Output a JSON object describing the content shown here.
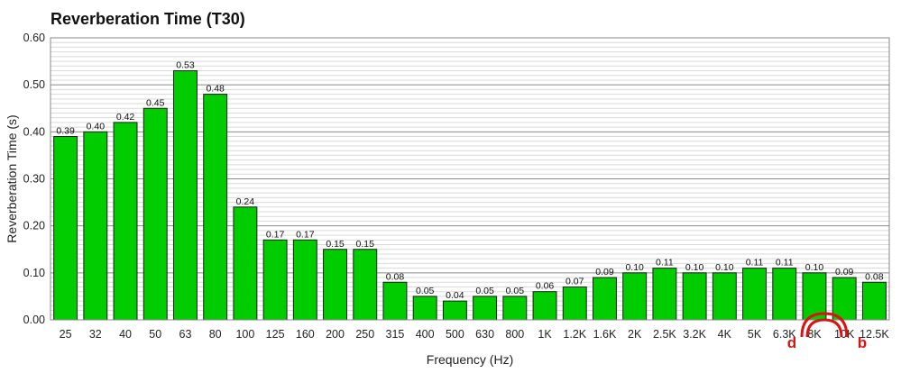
{
  "chart_data": {
    "type": "bar",
    "title": "Reverberation Time (T30)",
    "xlabel": "Frequency (Hz)",
    "ylabel": "Reverberation Time (s)",
    "ylim": [
      0,
      0.6
    ],
    "yticks": [
      "0.00",
      "0.10",
      "0.20",
      "0.30",
      "0.40",
      "0.50",
      "0.60"
    ],
    "categories": [
      "25",
      "32",
      "40",
      "50",
      "63",
      "80",
      "100",
      "125",
      "160",
      "200",
      "250",
      "315",
      "400",
      "500",
      "630",
      "800",
      "1K",
      "1.2K",
      "1.6K",
      "2K",
      "2.5K",
      "3.2K",
      "4K",
      "5K",
      "6.3K",
      "8K",
      "10K",
      "12.5K"
    ],
    "values": [
      0.39,
      0.4,
      0.42,
      0.45,
      0.53,
      0.48,
      0.24,
      0.17,
      0.17,
      0.15,
      0.15,
      0.08,
      0.05,
      0.04,
      0.05,
      0.05,
      0.06,
      0.07,
      0.09,
      0.1,
      0.11,
      0.1,
      0.1,
      0.11,
      0.11,
      0.1,
      0.09,
      0.08
    ],
    "value_labels": [
      "0.39",
      "0.40",
      "0.42",
      "0.45",
      "0.53",
      "0.48",
      "0.24",
      "0.17",
      "0.17",
      "0.15",
      "0.15",
      "0.08",
      "0.05",
      "0.04",
      "0.05",
      "0.05",
      "0.06",
      "0.07",
      "0.09",
      "0.10",
      "0.11",
      "0.10",
      "0.10",
      "0.11",
      "0.11",
      "0.10",
      "0.09",
      "0.08"
    ],
    "bar_color": "#00cc00",
    "grid": true,
    "legend": false
  },
  "annotation": {
    "left_letter": "d",
    "right_letter": "b",
    "color": "#dd1111",
    "icon": "headphones-icon"
  }
}
